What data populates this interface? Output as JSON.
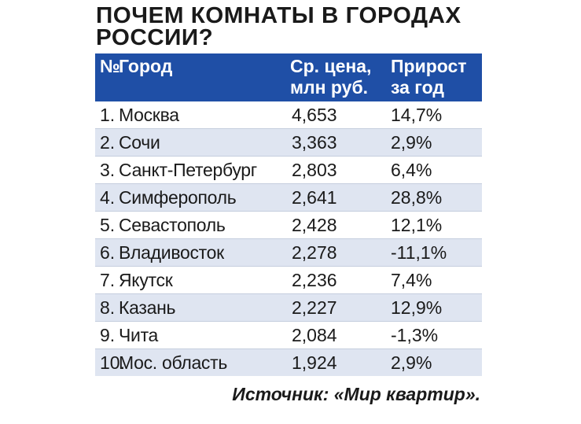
{
  "title": "ПОЧЕМ КОМНАТЫ В ГОРОДАХ РОССИИ?",
  "headers": {
    "num": "№",
    "city": "Город",
    "price_line1": "Ср. цена,",
    "price_line2": "млн руб.",
    "growth_line1": "Прирост",
    "growth_line2": "за год"
  },
  "source": "Источник: «Мир квартир».",
  "colors": {
    "header_bg": "#1f4fa6",
    "alt_row_bg": "#dfe5f1",
    "text": "#1a1a1a"
  },
  "chart_data": {
    "type": "table",
    "title": "ПОЧЕМ КОМНАТЫ В ГОРОДАХ РОССИИ?",
    "columns": [
      "№",
      "Город",
      "Ср. цена, млн руб.",
      "Прирост за год"
    ],
    "rows": [
      {
        "num": "1.",
        "city": "Москва",
        "price": "4,653",
        "growth": "14,7%"
      },
      {
        "num": "2.",
        "city": "Сочи",
        "price": " 3,363",
        "growth": "2,9%"
      },
      {
        "num": "3.",
        "city": "Санкт-Петербург",
        "price": "2,803",
        "growth": "6,4%"
      },
      {
        "num": "4.",
        "city": "Симферополь",
        "price": "2,641",
        "growth": "28,8%"
      },
      {
        "num": "5.",
        "city": "Севастополь",
        "price": "2,428",
        "growth": "12,1%"
      },
      {
        "num": "6.",
        "city": "Владивосток",
        "price": "2,278",
        "growth": "-11,1%"
      },
      {
        "num": "7.",
        "city": "Якутск",
        "price": "2,236",
        "growth": "7,4%"
      },
      {
        "num": "8.",
        "city": "Казань",
        "price": "2,227",
        "growth": "12,9%"
      },
      {
        "num": "9.",
        "city": "Чита",
        "price": "2,084",
        "growth": "-1,3%"
      },
      {
        "num": "10.",
        "city": "Мос. область",
        "price": "1,924",
        "growth": "2,9%"
      }
    ]
  }
}
